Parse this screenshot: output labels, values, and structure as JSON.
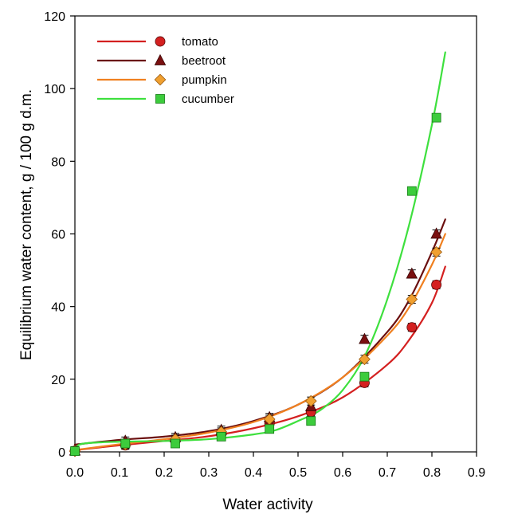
{
  "chart_data": {
    "type": "scatter",
    "xlabel": "Water activity",
    "ylabel": "Equilibrium water content, g / 100 g d.m.",
    "xlim": [
      0.0,
      0.9
    ],
    "ylim": [
      0,
      120
    ],
    "xticks": [
      "0.0",
      "0.1",
      "0.2",
      "0.3",
      "0.4",
      "0.5",
      "0.6",
      "0.7",
      "0.8",
      "0.9"
    ],
    "yticks": [
      "0",
      "20",
      "40",
      "60",
      "80",
      "100",
      "120"
    ],
    "grid": false,
    "legend_position": "top-left",
    "series": [
      {
        "name": "tomato",
        "color": "#d42020",
        "line_color": "#d42020",
        "marker": "circle",
        "x": [
          0.0,
          0.113,
          0.225,
          0.328,
          0.436,
          0.529,
          0.649,
          0.755,
          0.81
        ],
        "y": [
          0.3,
          1.8,
          3.0,
          4.8,
          7.8,
          11.0,
          19.0,
          34.3,
          46.0
        ],
        "fit": [
          [
            0.0,
            0.5
          ],
          [
            0.1,
            1.8
          ],
          [
            0.2,
            3.0
          ],
          [
            0.3,
            4.3
          ],
          [
            0.4,
            6.5
          ],
          [
            0.5,
            9.8
          ],
          [
            0.6,
            15.0
          ],
          [
            0.7,
            24.0
          ],
          [
            0.75,
            31.0
          ],
          [
            0.8,
            41.0
          ],
          [
            0.83,
            51.0
          ]
        ]
      },
      {
        "name": "beetroot",
        "color": "#7a1010",
        "line_color": "#6b0f0f",
        "marker": "triangle",
        "x": [
          0.0,
          0.113,
          0.225,
          0.328,
          0.436,
          0.529,
          0.649,
          0.755,
          0.81
        ],
        "y": [
          0.3,
          3.0,
          4.0,
          6.0,
          9.5,
          12.5,
          31.0,
          49.0,
          60.0
        ],
        "fit": [
          [
            0.0,
            2.0
          ],
          [
            0.1,
            3.3
          ],
          [
            0.2,
            4.2
          ],
          [
            0.3,
            5.7
          ],
          [
            0.4,
            8.5
          ],
          [
            0.5,
            13.0
          ],
          [
            0.6,
            20.5
          ],
          [
            0.7,
            33.0
          ],
          [
            0.75,
            42.0
          ],
          [
            0.8,
            55.0
          ],
          [
            0.83,
            64.0
          ]
        ]
      },
      {
        "name": "pumpkin",
        "color": "#f0a030",
        "line_color": "#f08020",
        "marker": "diamond",
        "x": [
          0.0,
          0.113,
          0.225,
          0.328,
          0.436,
          0.529,
          0.649,
          0.755,
          0.81
        ],
        "y": [
          0.2,
          2.0,
          3.5,
          5.5,
          9.0,
          14.0,
          25.5,
          42.0,
          55.0
        ],
        "fit": [
          [
            0.0,
            0.5
          ],
          [
            0.1,
            2.1
          ],
          [
            0.2,
            3.5
          ],
          [
            0.3,
            5.3
          ],
          [
            0.4,
            8.2
          ],
          [
            0.5,
            13.0
          ],
          [
            0.6,
            20.5
          ],
          [
            0.7,
            32.0
          ],
          [
            0.75,
            40.0
          ],
          [
            0.8,
            51.5
          ],
          [
            0.83,
            60.0
          ]
        ]
      },
      {
        "name": "cucumber",
        "color": "#3ccc3c",
        "line_color": "#3ee03e",
        "marker": "square",
        "x": [
          0.0,
          0.113,
          0.225,
          0.328,
          0.436,
          0.529,
          0.649,
          0.755,
          0.81
        ],
        "y": [
          0.2,
          2.3,
          2.3,
          4.2,
          6.3,
          8.5,
          20.7,
          71.8,
          92.0
        ],
        "fit": [
          [
            0.0,
            1.0
          ],
          [
            0.02,
            2.3
          ],
          [
            0.1,
            2.8
          ],
          [
            0.2,
            3.0
          ],
          [
            0.3,
            3.5
          ],
          [
            0.4,
            4.8
          ],
          [
            0.45,
            6.0
          ],
          [
            0.5,
            8.5
          ],
          [
            0.55,
            11.5
          ],
          [
            0.6,
            17.0
          ],
          [
            0.65,
            26.5
          ],
          [
            0.7,
            42.0
          ],
          [
            0.75,
            63.0
          ],
          [
            0.8,
            90.0
          ],
          [
            0.83,
            110.0
          ]
        ]
      }
    ]
  }
}
